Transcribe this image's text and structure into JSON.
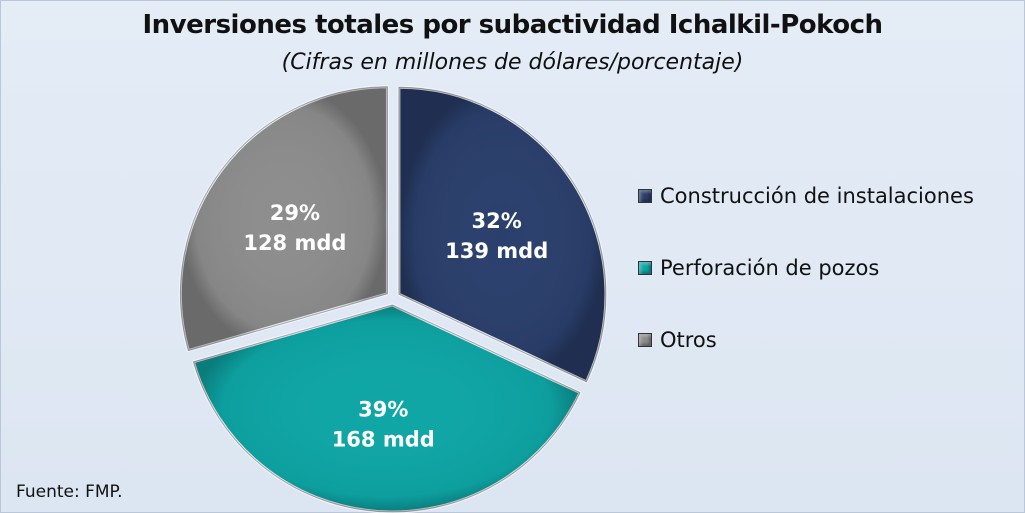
{
  "chart_data": {
    "type": "pie",
    "title": "Inversiones totales por subactividad Ichalkil-Pokoch",
    "subtitle": "(Cifras en millones de dólares/porcentaje)",
    "slices": [
      {
        "name": "Construcción de instalaciones",
        "value": 139,
        "percent": "32%",
        "value_label": "139 mdd",
        "color": "#2a3f6c"
      },
      {
        "name": "Perforación de pozos",
        "value": 168,
        "percent": "39%",
        "value_label": "168 mdd",
        "color": "#0ea6a6"
      },
      {
        "name": "Otros",
        "value": 128,
        "percent": "29%",
        "value_label": "128 mdd",
        "color": "#8d8d8d"
      }
    ],
    "legend_position": "right",
    "source": "Fuente: FMP."
  }
}
